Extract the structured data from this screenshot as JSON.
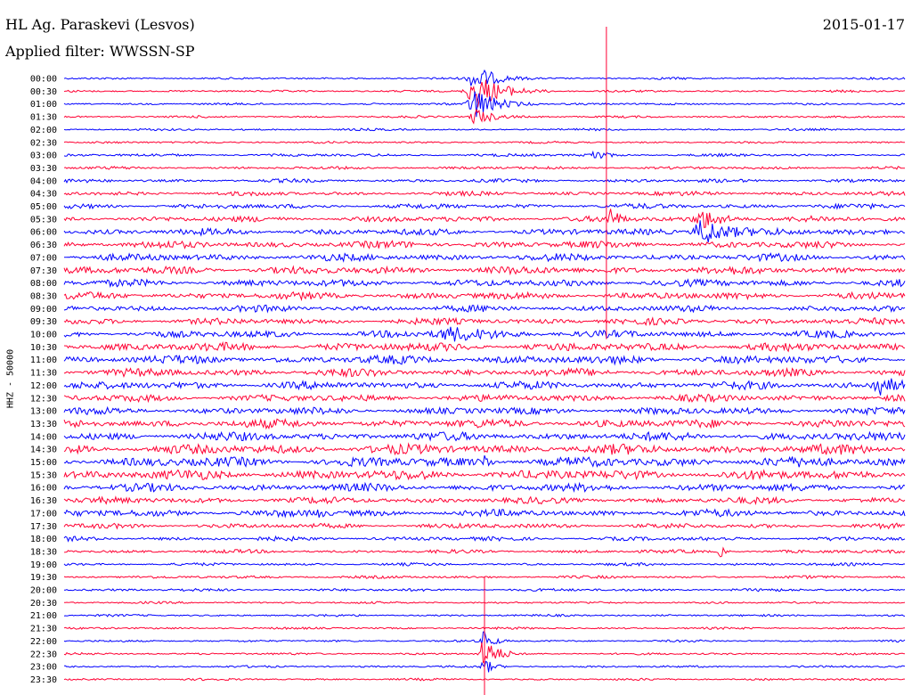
{
  "header": {
    "station": "HL Ag. Paraskevi (Lesvos)",
    "filter": "Applied filter: WWSSN-SP",
    "date": "2015-01-17"
  },
  "colors": {
    "trace_a": "#0000ff",
    "trace_b": "#ff0033"
  },
  "chart_data": {
    "type": "line",
    "title": "",
    "ylabel": "HHZ - 50000",
    "xlabel": "",
    "grid": false,
    "legend": "none",
    "rows": [
      "00:00",
      "00:30",
      "01:00",
      "01:30",
      "02:00",
      "02:30",
      "03:00",
      "03:30",
      "04:00",
      "04:30",
      "05:00",
      "05:30",
      "06:00",
      "06:30",
      "07:00",
      "07:30",
      "08:00",
      "08:30",
      "09:00",
      "09:30",
      "10:00",
      "10:30",
      "11:00",
      "11:30",
      "12:00",
      "12:30",
      "13:00",
      "13:30",
      "14:00",
      "14:30",
      "15:00",
      "15:30",
      "16:00",
      "16:30",
      "17:00",
      "17:30",
      "18:00",
      "18:30",
      "19:00",
      "19:30",
      "20:00",
      "20:30",
      "21:00",
      "21:30",
      "22:00",
      "22:30",
      "23:00",
      "23:30"
    ],
    "noise_level": [
      0.15,
      0.15,
      0.15,
      0.15,
      0.15,
      0.15,
      0.2,
      0.2,
      0.25,
      0.3,
      0.35,
      0.4,
      0.45,
      0.5,
      0.5,
      0.55,
      0.5,
      0.5,
      0.45,
      0.45,
      0.5,
      0.6,
      0.6,
      0.55,
      0.55,
      0.5,
      0.5,
      0.6,
      0.6,
      0.7,
      0.7,
      0.7,
      0.55,
      0.45,
      0.5,
      0.35,
      0.3,
      0.25,
      0.2,
      0.2,
      0.2,
      0.15,
      0.15,
      0.15,
      0.15,
      0.15,
      0.15,
      0.15
    ],
    "events": [
      {
        "row": 1,
        "pos": 0.49,
        "amp": 20,
        "width": 0.06
      },
      {
        "row": 0,
        "pos": 0.49,
        "amp": 14,
        "width": 0.05
      },
      {
        "row": 2,
        "pos": 0.49,
        "amp": 18,
        "width": 0.05
      },
      {
        "row": 3,
        "pos": 0.49,
        "amp": 10,
        "width": 0.04
      },
      {
        "row": 11,
        "pos": 0.65,
        "amp": 14,
        "width": 0.015
      },
      {
        "row": 12,
        "pos": 0.76,
        "amp": 16,
        "width": 0.06
      },
      {
        "row": 11,
        "pos": 0.76,
        "amp": 10,
        "width": 0.05
      },
      {
        "row": 6,
        "pos": 0.63,
        "amp": 9,
        "width": 0.02
      },
      {
        "row": 20,
        "pos": 0.46,
        "amp": 7,
        "width": 0.09
      },
      {
        "row": 24,
        "pos": 0.97,
        "amp": 10,
        "width": 0.05
      },
      {
        "row": 30,
        "pos": 0.5,
        "amp": 9,
        "width": 0.01
      },
      {
        "row": 34,
        "pos": 0.3,
        "amp": 9,
        "width": 0.01
      },
      {
        "row": 37,
        "pos": 0.78,
        "amp": 8,
        "width": 0.01
      },
      {
        "row": 45,
        "pos": 0.5,
        "amp": 20,
        "width": 0.03
      },
      {
        "row": 44,
        "pos": 0.5,
        "amp": 12,
        "width": 0.02
      },
      {
        "row": 46,
        "pos": 0.5,
        "amp": 9,
        "width": 0.02
      }
    ],
    "spikes": [
      {
        "pos": 0.645,
        "from_row": 0,
        "to_row": 19,
        "color": "trace_b"
      },
      {
        "pos": 0.5,
        "from_row": 43,
        "to_row": 47,
        "color": "trace_b"
      }
    ]
  }
}
